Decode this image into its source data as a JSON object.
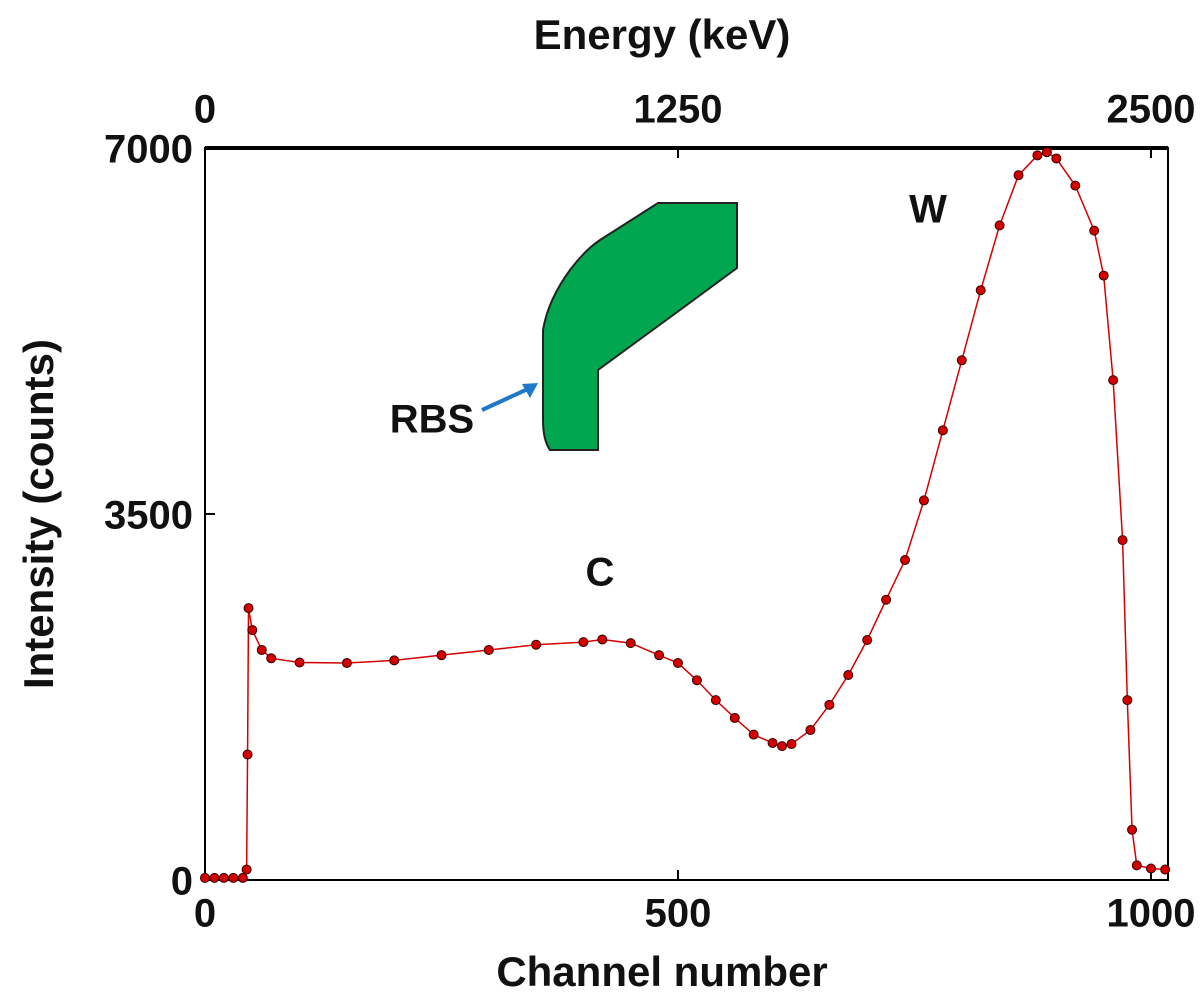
{
  "chart_data": {
    "type": "line",
    "x_label": "Channel number",
    "x2_label": "Energy (keV)",
    "y_label": "Intensity (counts)",
    "annotations": [
      "C",
      "W",
      "RBS"
    ],
    "xlim": [
      0,
      1018
    ],
    "xticks": [
      0,
      500,
      1000
    ],
    "x2lim": [
      0,
      2545
    ],
    "x2ticks": [
      0,
      1250,
      2500
    ],
    "ylim": [
      0,
      7000
    ],
    "yticks": [
      0,
      3500,
      7000
    ],
    "markers": true,
    "series": [
      {
        "color": "#d40000",
        "x": [
          0,
          10,
          20,
          30,
          40,
          44,
          45,
          46,
          50,
          60,
          70,
          100,
          150,
          200,
          250,
          300,
          350,
          400,
          420,
          450,
          480,
          500,
          520,
          540,
          560,
          580,
          600,
          610,
          620,
          640,
          660,
          680,
          700,
          720,
          740,
          760,
          780,
          800,
          820,
          840,
          860,
          880,
          890,
          900,
          920,
          940,
          950,
          960,
          970,
          975,
          980,
          985,
          1000,
          1015
        ],
        "values": [
          20,
          20,
          20,
          20,
          20,
          100,
          1200,
          2600,
          2390,
          2200,
          2120,
          2080,
          2075,
          2100,
          2150,
          2200,
          2250,
          2275,
          2300,
          2265,
          2150,
          2075,
          1910,
          1720,
          1550,
          1390,
          1310,
          1280,
          1300,
          1435,
          1675,
          1960,
          2295,
          2680,
          3060,
          3630,
          4300,
          4970,
          5640,
          6260,
          6740,
          6930,
          6960,
          6900,
          6640,
          6210,
          5780,
          4780,
          3250,
          1720,
          480,
          140,
          110,
          100
        ]
      }
    ]
  }
}
